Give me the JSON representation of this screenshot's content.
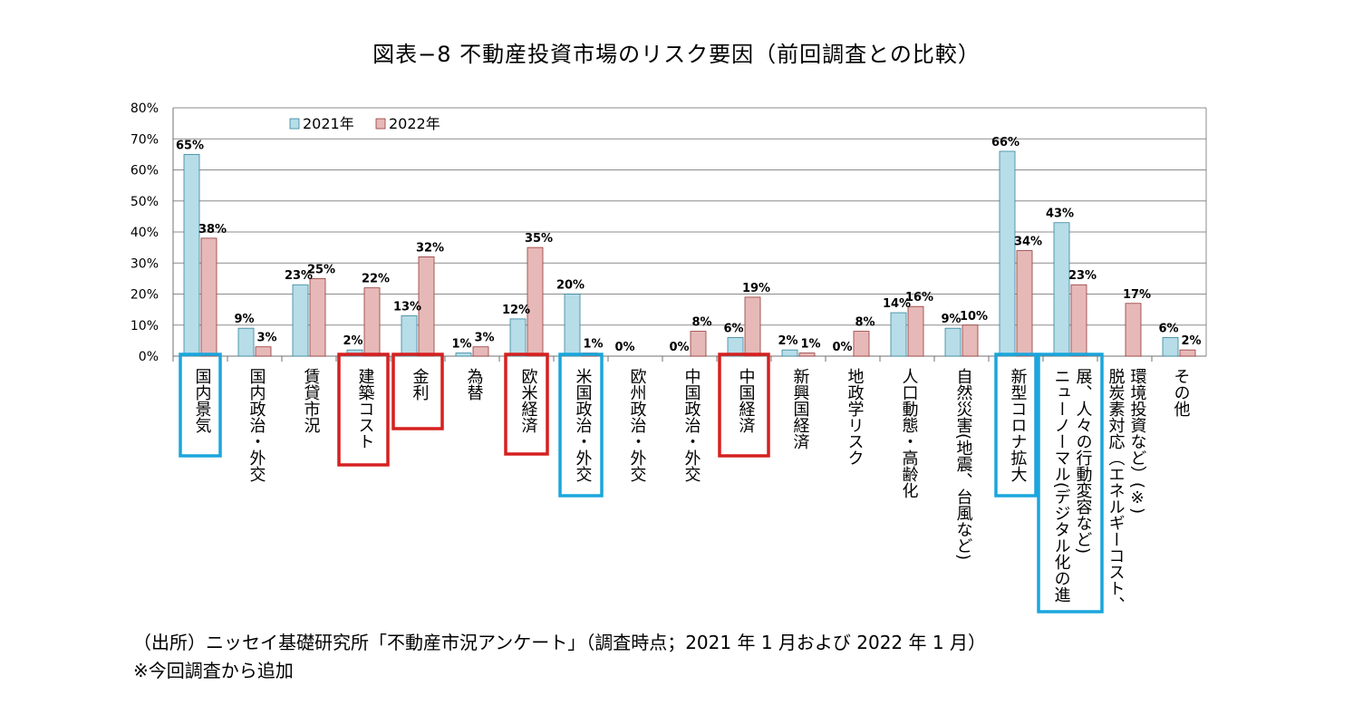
{
  "page_title": "図表−8  不動産投資市場のリスク要因（前回調査との比較）",
  "source_note": "（出所）ニッセイ基礎研究所「不動産市況アンケート」（調査時点；2021 年 1 月および 2022 年 1 月）",
  "added_note": "※今回調査から追加",
  "colors": {
    "series_2021": "#b7dde8",
    "series_2021_edge": "#31859c",
    "series_2022": "#e6b9b8",
    "series_2022_edge": "#953735",
    "highlight_blue": "#1aa6dc",
    "highlight_red": "#d62020",
    "grid": "#8c8c8c"
  },
  "chart_data": {
    "type": "bar",
    "ylim": [
      0,
      80
    ],
    "yticks": [
      "0%",
      "10%",
      "20%",
      "30%",
      "40%",
      "50%",
      "60%",
      "70%",
      "80%"
    ],
    "grid": true,
    "legend": "top-left",
    "categories": [
      "国内景気",
      "国内政治・外交",
      "賃貸市況",
      "建築コスト",
      "金利",
      "為替",
      "欧米経済",
      "米国政治・外交",
      "欧州政治・外交",
      "中国政治・外交",
      "中国経済",
      "新興国経済",
      "地政学リスク",
      "人口動態・高齢化",
      "自然災害(地震、台風など)",
      "新型コロナ拡大",
      "ニューノーマル(デジタル化の進展、人々の行動変容など)",
      "脱炭素対応（エネルギーコスト、環境投資など）(※)",
      "その他"
    ],
    "category_lines": [
      [
        "国内景気"
      ],
      [
        "国内政治・外交"
      ],
      [
        "賃貸市況"
      ],
      [
        "建築コスト"
      ],
      [
        "金利"
      ],
      [
        "為替"
      ],
      [
        "欧米経済"
      ],
      [
        "米国政治・外交"
      ],
      [
        "欧州政治・外交"
      ],
      [
        "中国政治・外交"
      ],
      [
        "中国経済"
      ],
      [
        "新興国経済"
      ],
      [
        "地政学リスク"
      ],
      [
        "人口動態・高齢化"
      ],
      [
        "自然災害(地震、台風など)"
      ],
      [
        "新型コロナ拡大"
      ],
      [
        "ニューノーマル(デジタル化の進",
        "展、人々の行動変容など)"
      ],
      [
        "脱炭素対応（エネルギーコスト、",
        "環境投資など）(※)"
      ],
      [
        "その他"
      ]
    ],
    "series": [
      {
        "name": "2021年",
        "values": [
          65,
          9,
          23,
          2,
          13,
          1,
          12,
          20,
          0,
          0,
          6,
          2,
          0,
          14,
          9,
          66,
          43,
          null,
          6
        ],
        "labels": [
          "65%",
          "9%",
          "23%",
          "2%",
          "13%",
          "1%",
          "12%",
          "20%",
          "0%",
          "0%",
          "6%",
          "2%",
          "0%",
          "14%",
          "9%",
          "66%",
          "43%",
          "",
          "6%"
        ]
      },
      {
        "name": "2022年",
        "values": [
          38,
          3,
          25,
          22,
          32,
          3,
          35,
          1,
          0,
          8,
          19,
          1,
          8,
          16,
          10,
          34,
          23,
          17,
          2
        ],
        "labels": [
          "38%",
          "3%",
          "25%",
          "22%",
          "32%",
          "3%",
          "35%",
          "1%",
          "",
          "8%",
          "19%",
          "1%",
          "8%",
          "16%",
          "10%",
          "34%",
          "23%",
          "17%",
          "2%"
        ]
      }
    ],
    "highlights": [
      {
        "category": "国内景気",
        "color": "blue"
      },
      {
        "category": "建築コスト",
        "color": "red"
      },
      {
        "category": "金利",
        "color": "red"
      },
      {
        "category": "欧米経済",
        "color": "red"
      },
      {
        "category": "米国政治・外交",
        "color": "blue"
      },
      {
        "category": "中国経済",
        "color": "red"
      },
      {
        "category": "新型コロナ拡大",
        "color": "blue"
      },
      {
        "category": "ニューノーマル(デジタル化の進展、人々の行動変容など)",
        "color": "blue"
      }
    ]
  }
}
